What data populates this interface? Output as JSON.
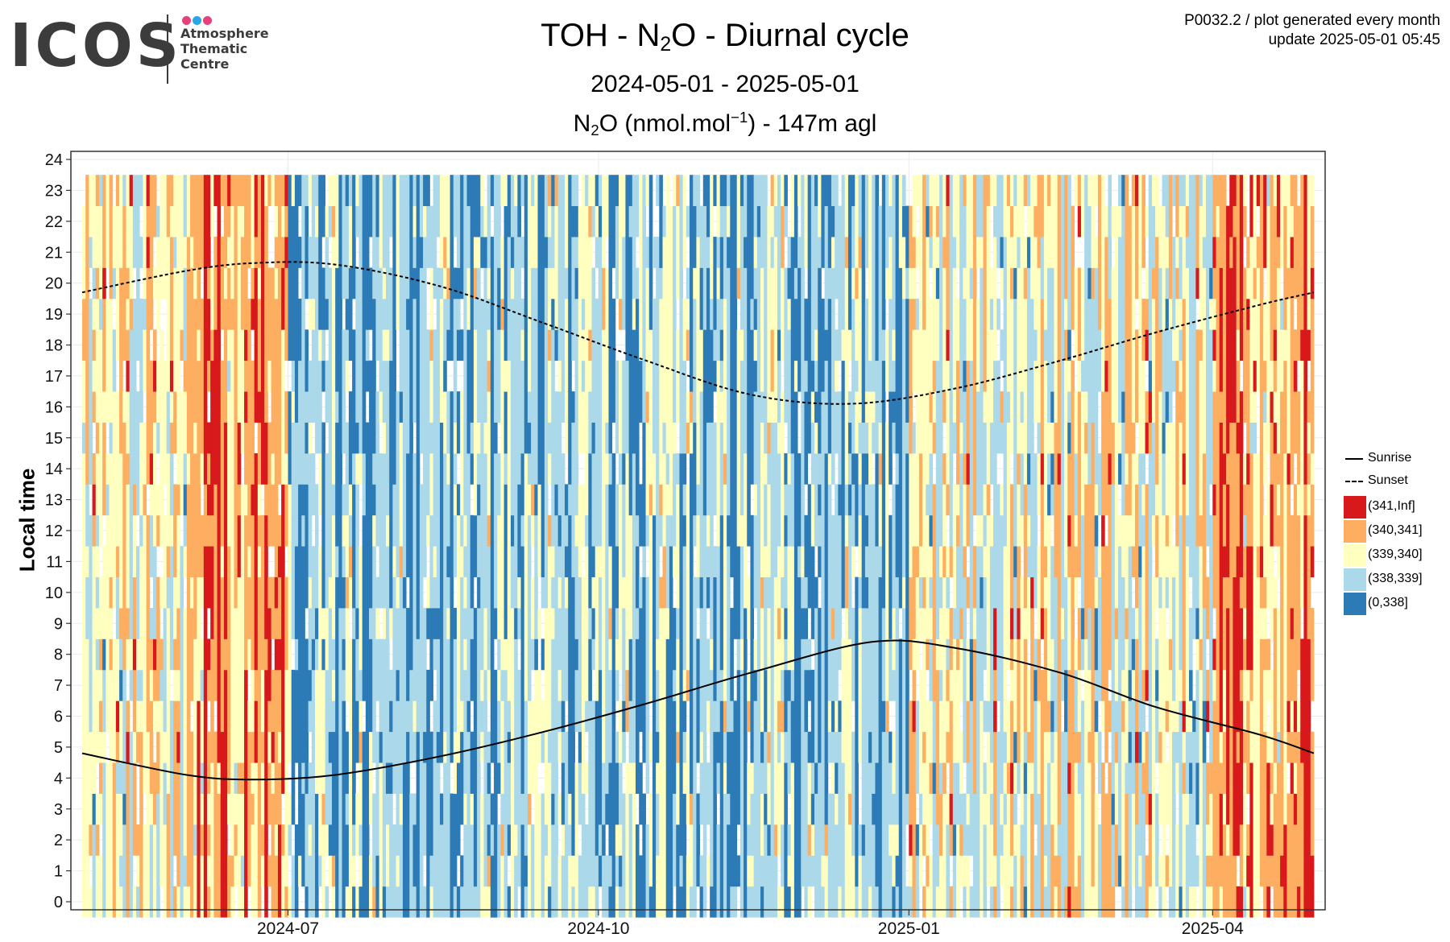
{
  "logo": {
    "word": "ICOS",
    "lines": [
      "Atmosphere",
      "Thematic",
      "Centre"
    ],
    "dot_colors": [
      "#e6417d",
      "#2aa7e0",
      "#e6417d"
    ]
  },
  "header": {
    "title_pre": "TOH - N",
    "title_sub": "2",
    "title_post": "O - Diurnal cycle",
    "date_range": "2024-05-01 - 2025-05-01",
    "subtitle_pre": "N",
    "subtitle_sub": "2",
    "subtitle_mid": "O (nmol.mol",
    "subtitle_sup": "−1",
    "subtitle_post": ") - 147m agl",
    "meta_line1": "P0032.2 / plot generated every month",
    "meta_line2": "update  2025-05-01 05:45"
  },
  "chart_data": {
    "type": "heatmap",
    "ylabel": "Local time",
    "xlabel": "",
    "x_range": [
      "2024-05-01",
      "2025-05-01"
    ],
    "x_ticks": [
      "2024-07",
      "2024-10",
      "2025-01",
      "2025-04"
    ],
    "y_range": [
      0,
      24
    ],
    "y_ticks": [
      0,
      1,
      2,
      3,
      4,
      5,
      6,
      7,
      8,
      9,
      10,
      11,
      12,
      13,
      14,
      15,
      16,
      17,
      18,
      19,
      20,
      21,
      22,
      23,
      24
    ],
    "grid": true,
    "legend_position": "right",
    "categories": [
      {
        "label": "(341,Inf]",
        "color": "#d7191c"
      },
      {
        "label": "(340,341]",
        "color": "#fdae61"
      },
      {
        "label": "(339,340]",
        "color": "#ffffbf"
      },
      {
        "label": "(338,339]",
        "color": "#abd9e9"
      },
      {
        "label": "(0,338]",
        "color": "#2c7bb6"
      }
    ],
    "monthly_dominant_class": [
      {
        "month": "2024-05",
        "class": "(339,340]"
      },
      {
        "month": "2024-06",
        "class": "(340,341]"
      },
      {
        "month": "2024-07",
        "class": "(338,339]"
      },
      {
        "month": "2024-08",
        "class": "(338,339]"
      },
      {
        "month": "2024-09",
        "class": "(338,339]"
      },
      {
        "month": "2024-10",
        "class": "(338,339]"
      },
      {
        "month": "2024-11",
        "class": "(338,339]"
      },
      {
        "month": "2024-12",
        "class": "(338,339]"
      },
      {
        "month": "2025-01",
        "class": "(339,340]"
      },
      {
        "month": "2025-02",
        "class": "(339,340]"
      },
      {
        "month": "2025-03",
        "class": "(339,340]"
      },
      {
        "month": "2025-04",
        "class": "(340,341]"
      }
    ],
    "series": [
      {
        "name": "Sunrise",
        "style": "solid",
        "x": [
          "2024-05-01",
          "2024-06-01",
          "2024-06-21",
          "2024-07-15",
          "2024-08-15",
          "2024-09-15",
          "2024-10-15",
          "2024-11-15",
          "2024-12-21",
          "2025-01-15",
          "2025-02-15",
          "2025-03-15",
          "2025-04-15",
          "2025-05-01"
        ],
        "y": [
          4.8,
          4.1,
          3.95,
          4.1,
          4.7,
          5.5,
          6.4,
          7.4,
          8.4,
          8.2,
          7.4,
          6.3,
          5.4,
          4.8
        ]
      },
      {
        "name": "Sunset",
        "style": "dashed",
        "x": [
          "2024-05-01",
          "2024-06-01",
          "2024-06-21",
          "2024-07-15",
          "2024-08-15",
          "2024-09-15",
          "2024-10-15",
          "2024-11-15",
          "2024-12-15",
          "2025-01-15",
          "2025-02-15",
          "2025-03-15",
          "2025-04-15",
          "2025-05-01"
        ],
        "y": [
          19.7,
          20.4,
          20.65,
          20.6,
          19.9,
          18.7,
          17.5,
          16.4,
          16.1,
          16.6,
          17.5,
          18.4,
          19.3,
          19.7
        ]
      }
    ]
  }
}
